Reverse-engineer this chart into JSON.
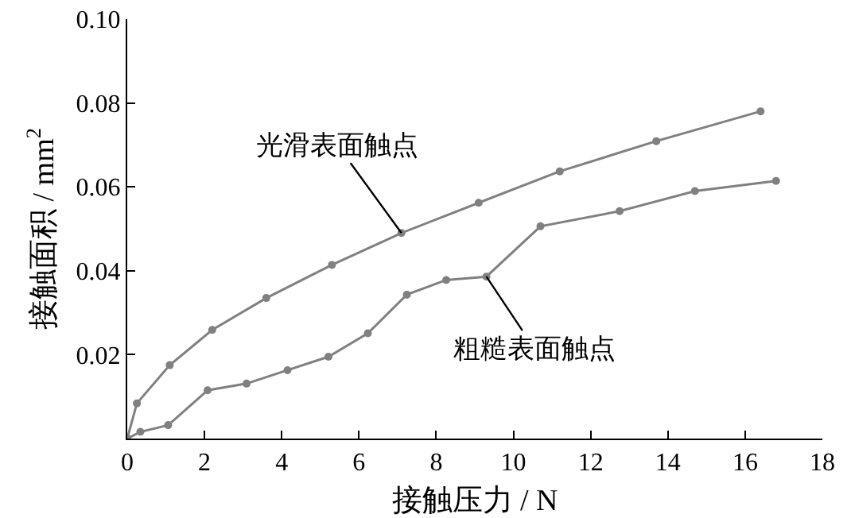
{
  "chart_data": {
    "type": "line",
    "xlabel": "接触压力 / N",
    "ylabel": "接触面积 / mm$^{2}$",
    "xlim": [
      0,
      18
    ],
    "ylim": [
      0,
      0.1
    ],
    "xticks": [
      0,
      2,
      4,
      6,
      8,
      10,
      12,
      14,
      16,
      18
    ],
    "yticks": [
      {
        "value": 0,
        "label": null
      },
      0.02,
      0.04,
      0.06,
      0.08,
      {
        "value": 0.1,
        "label": "0.10"
      }
    ],
    "grid": false,
    "legend": false,
    "marker": "circle",
    "line_style": "solid",
    "series": [
      {
        "name": "光滑表面触点",
        "color": "#808080",
        "x": [
          0,
          0.25,
          1.1,
          2.2,
          3.6,
          5.3,
          7.1,
          9.1,
          11.2,
          13.7,
          16.4
        ],
        "values": [
          0,
          0.0084,
          0.0175,
          0.0259,
          0.0335,
          0.0414,
          0.049,
          0.0562,
          0.0637,
          0.0709,
          0.078
        ]
      },
      {
        "name": "粗糙表面触点",
        "color": "#808080",
        "x": [
          0,
          0.34,
          1.06,
          2.08,
          3.09,
          4.15,
          5.21,
          6.23,
          7.24,
          8.26,
          9.3,
          10.7,
          12.75,
          14.7,
          16.8
        ],
        "values": [
          0,
          0.0016,
          0.0032,
          0.0115,
          0.0131,
          0.0163,
          0.0195,
          0.0251,
          0.0343,
          0.0378,
          0.0386,
          0.0506,
          0.0542,
          0.059,
          0.0614
        ]
      }
    ]
  }
}
